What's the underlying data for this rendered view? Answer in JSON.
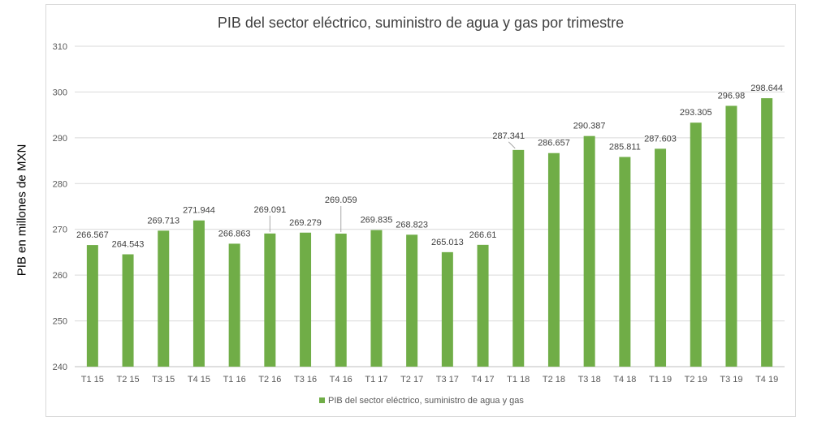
{
  "chart_data": {
    "type": "bar",
    "title": "PIB del sector eléctrico, suministro de agua y gas por trimestre",
    "xlabel": "",
    "ylabel": "PIB en millones de MXN",
    "ylim": [
      240,
      310
    ],
    "yticks": [
      240,
      250,
      260,
      270,
      280,
      290,
      300,
      310
    ],
    "grid": true,
    "legend_position": "bottom",
    "categories": [
      "T1 15",
      "T2 15",
      "T3 15",
      "T4 15",
      "T1 16",
      "T2 16",
      "T3 16",
      "T4 16",
      "T1 17",
      "T2 17",
      "T3 17",
      "T4 17",
      "T1 18",
      "T2 18",
      "T3 18",
      "T4 18",
      "T1 19",
      "T2 19",
      "T3 19",
      "T4 19"
    ],
    "series": [
      {
        "name": "PIB del sector eléctrico, suministro de agua y gas",
        "color": "#70ad47",
        "values": [
          266.567,
          264.543,
          269.713,
          271.944,
          266.863,
          269.091,
          269.279,
          269.059,
          269.835,
          268.823,
          265.013,
          266.61,
          287.341,
          286.657,
          290.387,
          285.811,
          287.603,
          293.305,
          296.98,
          298.644
        ],
        "labels": [
          "266.567",
          "264.543",
          "269.713",
          "271.944",
          "266.863",
          "269.091",
          "269.279",
          "269.059",
          "269.835",
          "268.823",
          "265.013",
          "266.61",
          "287.341",
          "286.657",
          "290.387",
          "285.811",
          "287.603",
          "293.305",
          "296.98",
          "298.644"
        ]
      }
    ]
  }
}
